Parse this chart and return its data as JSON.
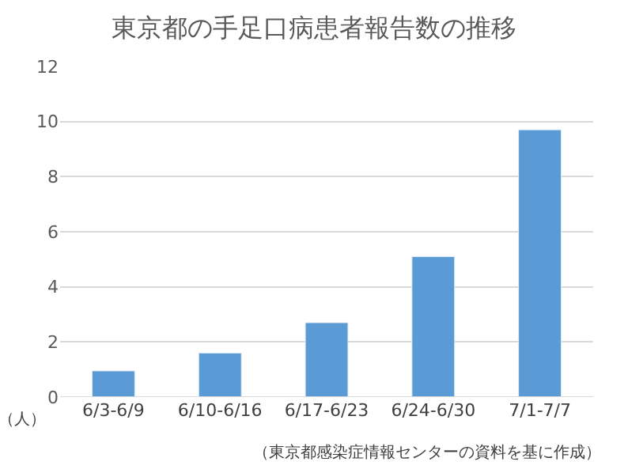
{
  "chart_data": {
    "type": "bar",
    "title": "東京都の手足口病患者報告数の推移",
    "ylabel": "（人）",
    "categories": [
      "6/3-6/9",
      "6/10-6/16",
      "6/17-6/23",
      "6/24-6/30",
      "7/1-7/7"
    ],
    "values": [
      0.95,
      1.6,
      2.7,
      5.1,
      9.7
    ],
    "color": "#5b9bd5",
    "ylim": [
      0,
      12
    ],
    "yticks": [
      0,
      2,
      4,
      6,
      8,
      10,
      12
    ],
    "grid": "y",
    "annotations": [
      "（東京都感染症情報センターの資料を基に作成）"
    ]
  }
}
